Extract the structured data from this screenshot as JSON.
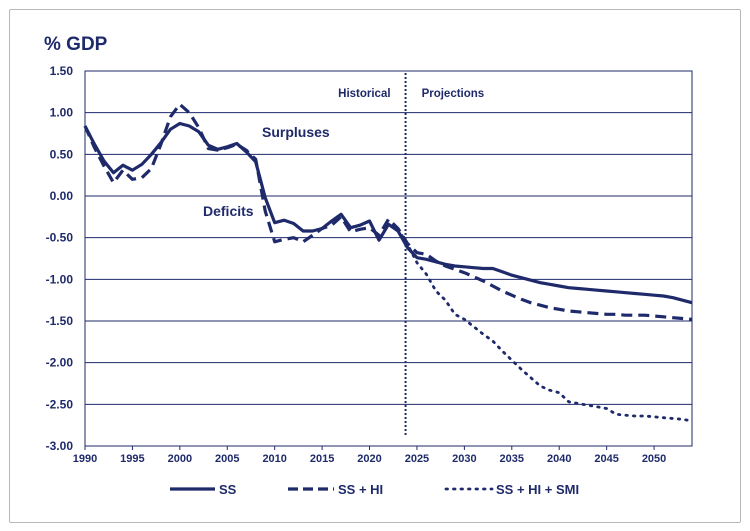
{
  "colors": {
    "series": "#1f2a6b",
    "grid": "#1f2a6b",
    "border": "#b8b8b8"
  },
  "chart_data": {
    "type": "line",
    "ylabel": "% GDP",
    "xlabel": "",
    "xlim": [
      1990,
      2054
    ],
    "ylim": [
      -3.0,
      1.5
    ],
    "yticks": [
      "1.50",
      "1.00",
      "0.50",
      "0.00",
      "-0.50",
      "-1.00",
      "-1.50",
      "-2.00",
      "-2.50",
      "-3.00"
    ],
    "xticks": [
      "1990",
      "1995",
      "2000",
      "2005",
      "2010",
      "2015",
      "2020",
      "2025",
      "2030",
      "2035",
      "2040",
      "2045",
      "2050"
    ],
    "grid": "horizontal",
    "annotations": {
      "historical": "Historical",
      "projections": "Projections",
      "surpluses": "Surpluses",
      "deficits": "Deficits"
    },
    "divider_year": 2023.8,
    "legend_position": "bottom",
    "series": [
      {
        "name": "SS",
        "style": "solid",
        "points": [
          [
            1990,
            0.84
          ],
          [
            1991,
            0.62
          ],
          [
            1992,
            0.42
          ],
          [
            1993,
            0.28
          ],
          [
            1994,
            0.37
          ],
          [
            1995,
            0.31
          ],
          [
            1996,
            0.38
          ],
          [
            1997,
            0.5
          ],
          [
            1998,
            0.64
          ],
          [
            1999,
            0.8
          ],
          [
            2000,
            0.87
          ],
          [
            2001,
            0.84
          ],
          [
            2002,
            0.77
          ],
          [
            2003,
            0.61
          ],
          [
            2004,
            0.56
          ],
          [
            2005,
            0.59
          ],
          [
            2006,
            0.63
          ],
          [
            2007,
            0.53
          ],
          [
            2008,
            0.41
          ],
          [
            2009,
            -0.02
          ],
          [
            2010,
            -0.32
          ],
          [
            2011,
            -0.29
          ],
          [
            2012,
            -0.33
          ],
          [
            2013,
            -0.42
          ],
          [
            2014,
            -0.42
          ],
          [
            2015,
            -0.39
          ],
          [
            2016,
            -0.3
          ],
          [
            2017,
            -0.22
          ],
          [
            2018,
            -0.38
          ],
          [
            2019,
            -0.35
          ],
          [
            2020,
            -0.3
          ],
          [
            2021,
            -0.53
          ],
          [
            2022,
            -0.34
          ],
          [
            2023,
            -0.42
          ],
          [
            2024,
            -0.62
          ],
          [
            2025,
            -0.74
          ],
          [
            2026,
            -0.76
          ],
          [
            2027,
            -0.79
          ],
          [
            2028,
            -0.82
          ],
          [
            2029,
            -0.84
          ],
          [
            2030,
            -0.85
          ],
          [
            2031,
            -0.86
          ],
          [
            2032,
            -0.87
          ],
          [
            2033,
            -0.87
          ],
          [
            2034,
            -0.91
          ],
          [
            2035,
            -0.95
          ],
          [
            2036,
            -0.98
          ],
          [
            2037,
            -1.01
          ],
          [
            2038,
            -1.04
          ],
          [
            2039,
            -1.06
          ],
          [
            2040,
            -1.08
          ],
          [
            2041,
            -1.1
          ],
          [
            2042,
            -1.11
          ],
          [
            2043,
            -1.12
          ],
          [
            2044,
            -1.13
          ],
          [
            2045,
            -1.14
          ],
          [
            2046,
            -1.15
          ],
          [
            2047,
            -1.16
          ],
          [
            2048,
            -1.17
          ],
          [
            2049,
            -1.18
          ],
          [
            2050,
            -1.19
          ],
          [
            2051,
            -1.2
          ],
          [
            2052,
            -1.22
          ],
          [
            2053,
            -1.25
          ],
          [
            2054,
            -1.28
          ]
        ]
      },
      {
        "name": "SS + HI",
        "style": "dashed",
        "points": [
          [
            1990,
            0.84
          ],
          [
            1991,
            0.58
          ],
          [
            1992,
            0.36
          ],
          [
            1993,
            0.16
          ],
          [
            1994,
            0.31
          ],
          [
            1995,
            0.2
          ],
          [
            1996,
            0.22
          ],
          [
            1997,
            0.33
          ],
          [
            1998,
            0.62
          ],
          [
            1999,
            0.95
          ],
          [
            2000,
            1.1
          ],
          [
            2001,
            1.0
          ],
          [
            2002,
            0.82
          ],
          [
            2003,
            0.57
          ],
          [
            2004,
            0.55
          ],
          [
            2005,
            0.58
          ],
          [
            2006,
            0.62
          ],
          [
            2007,
            0.55
          ],
          [
            2008,
            0.44
          ],
          [
            2009,
            -0.18
          ],
          [
            2010,
            -0.55
          ],
          [
            2011,
            -0.52
          ],
          [
            2012,
            -0.5
          ],
          [
            2013,
            -0.55
          ],
          [
            2014,
            -0.47
          ],
          [
            2015,
            -0.39
          ],
          [
            2016,
            -0.35
          ],
          [
            2017,
            -0.25
          ],
          [
            2018,
            -0.43
          ],
          [
            2019,
            -0.4
          ],
          [
            2020,
            -0.38
          ],
          [
            2021,
            -0.47
          ],
          [
            2022,
            -0.28
          ],
          [
            2023,
            -0.39
          ],
          [
            2024,
            -0.57
          ],
          [
            2025,
            -0.68
          ],
          [
            2026,
            -0.7
          ],
          [
            2027,
            -0.78
          ],
          [
            2028,
            -0.84
          ],
          [
            2029,
            -0.88
          ],
          [
            2030,
            -0.92
          ],
          [
            2031,
            -0.97
          ],
          [
            2032,
            -1.02
          ],
          [
            2033,
            -1.08
          ],
          [
            2034,
            -1.14
          ],
          [
            2035,
            -1.19
          ],
          [
            2036,
            -1.24
          ],
          [
            2037,
            -1.28
          ],
          [
            2038,
            -1.31
          ],
          [
            2039,
            -1.34
          ],
          [
            2040,
            -1.36
          ],
          [
            2041,
            -1.38
          ],
          [
            2042,
            -1.39
          ],
          [
            2043,
            -1.4
          ],
          [
            2044,
            -1.41
          ],
          [
            2045,
            -1.42
          ],
          [
            2046,
            -1.42
          ],
          [
            2047,
            -1.43
          ],
          [
            2048,
            -1.43
          ],
          [
            2049,
            -1.43
          ],
          [
            2050,
            -1.44
          ],
          [
            2051,
            -1.45
          ],
          [
            2052,
            -1.46
          ],
          [
            2053,
            -1.47
          ],
          [
            2054,
            -1.48
          ]
        ]
      },
      {
        "name": "SS + HI + SMI",
        "style": "dotted",
        "points": [
          [
            2023,
            -0.4
          ],
          [
            2024,
            -0.58
          ],
          [
            2025,
            -0.8
          ],
          [
            2026,
            -0.94
          ],
          [
            2027,
            -1.14
          ],
          [
            2028,
            -1.25
          ],
          [
            2029,
            -1.42
          ],
          [
            2030,
            -1.48
          ],
          [
            2031,
            -1.57
          ],
          [
            2032,
            -1.66
          ],
          [
            2033,
            -1.74
          ],
          [
            2034,
            -1.86
          ],
          [
            2035,
            -1.97
          ],
          [
            2036,
            -2.08
          ],
          [
            2037,
            -2.18
          ],
          [
            2038,
            -2.28
          ],
          [
            2039,
            -2.33
          ],
          [
            2040,
            -2.36
          ],
          [
            2041,
            -2.47
          ],
          [
            2042,
            -2.49
          ],
          [
            2043,
            -2.51
          ],
          [
            2044,
            -2.53
          ],
          [
            2045,
            -2.55
          ],
          [
            2046,
            -2.62
          ],
          [
            2047,
            -2.63
          ],
          [
            2048,
            -2.64
          ],
          [
            2049,
            -2.64
          ],
          [
            2050,
            -2.65
          ],
          [
            2051,
            -2.66
          ],
          [
            2052,
            -2.67
          ],
          [
            2053,
            -2.68
          ],
          [
            2054,
            -2.7
          ]
        ]
      }
    ]
  }
}
